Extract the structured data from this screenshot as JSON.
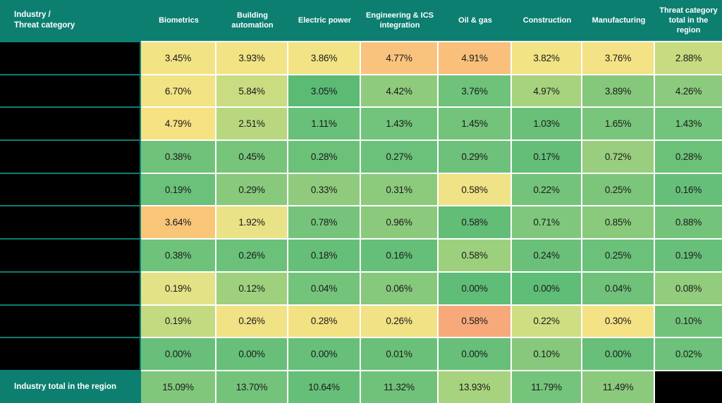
{
  "header": {
    "corner_label": "Industry /\nThreat category"
  },
  "footer": {
    "label": "Industry total in the region"
  },
  "colors": {
    "header_bg": "#0D7F71",
    "header_text": "#FFFFFF",
    "data_grid_line": "#FFFFFF",
    "label_grid_line": "#0E7E71",
    "cell_text": "#1A1A1A",
    "redacted": "#000000"
  },
  "chart_data": {
    "type": "heatmap",
    "title": "",
    "value_format": "percent, 2 decimals",
    "color_scale": "green (low) -> yellow -> orange/red (high)",
    "corner_label": "Industry / Threat category",
    "columns": [
      "Biometrics",
      "Building automation",
      "Electric power",
      "Engineering & ICS integration",
      "Oil & gas",
      "Construction",
      "Manufacturing",
      "Threat category total in the region"
    ],
    "rows": [
      {
        "label": "",
        "redacted": true,
        "values": [
          3.45,
          3.93,
          3.86,
          4.77,
          4.91,
          3.82,
          3.76,
          2.88
        ]
      },
      {
        "label": "",
        "redacted": true,
        "values": [
          6.7,
          5.84,
          3.05,
          4.42,
          3.76,
          4.97,
          3.89,
          4.26
        ]
      },
      {
        "label": "",
        "redacted": true,
        "values": [
          4.79,
          2.51,
          1.11,
          1.43,
          1.45,
          1.03,
          1.65,
          1.43
        ]
      },
      {
        "label": "",
        "redacted": true,
        "values": [
          0.38,
          0.45,
          0.28,
          0.27,
          0.29,
          0.17,
          0.72,
          0.28
        ]
      },
      {
        "label": "",
        "redacted": true,
        "values": [
          0.19,
          0.29,
          0.33,
          0.31,
          0.58,
          0.22,
          0.25,
          0.16
        ]
      },
      {
        "label": "",
        "redacted": true,
        "values": [
          3.64,
          1.92,
          0.78,
          0.96,
          0.58,
          0.71,
          0.85,
          0.88
        ]
      },
      {
        "label": "",
        "redacted": true,
        "values": [
          0.38,
          0.26,
          0.18,
          0.16,
          0.58,
          0.24,
          0.25,
          0.19
        ]
      },
      {
        "label": "",
        "redacted": true,
        "values": [
          0.19,
          0.12,
          0.04,
          0.06,
          0.0,
          0.0,
          0.04,
          0.08
        ]
      },
      {
        "label": "",
        "redacted": true,
        "values": [
          0.19,
          0.26,
          0.28,
          0.26,
          0.58,
          0.22,
          0.3,
          0.1
        ]
      },
      {
        "label": "",
        "redacted": true,
        "values": [
          0.0,
          0.0,
          0.0,
          0.01,
          0.0,
          0.1,
          0.0,
          0.02
        ]
      }
    ],
    "cell_colors": [
      [
        "#F2E385",
        "#F2E385",
        "#F2E385",
        "#FAC37D",
        "#F9C07B",
        "#F2E385",
        "#F4E286",
        "#C7DB81"
      ],
      [
        "#F2E385",
        "#CADC81",
        "#5BBB75",
        "#8FCB7D",
        "#6EC27A",
        "#A7D27E",
        "#85C87C",
        "#8CCA7D"
      ],
      [
        "#F6E183",
        "#B8D77F",
        "#68C079",
        "#72C37B",
        "#73C37B",
        "#6AC079",
        "#79C57B",
        "#72C37B"
      ],
      [
        "#70C27A",
        "#77C47B",
        "#6CC179",
        "#6BC179",
        "#6DC17A",
        "#64BE78",
        "#98CE7D",
        "#6CC179"
      ],
      [
        "#6CC17A",
        "#89C97C",
        "#90CB7D",
        "#8CCA7C",
        "#F0E286",
        "#74C37B",
        "#7CC67B",
        "#66BF79"
      ],
      [
        "#F9C577",
        "#EAE287",
        "#76C47B",
        "#8BCA7C",
        "#62BD77",
        "#7FC77C",
        "#8ACA7C",
        "#74C37B"
      ],
      [
        "#6FC27A",
        "#6BC179",
        "#66BF78",
        "#65BF78",
        "#9DD07D",
        "#6AC079",
        "#6BC179",
        "#67BF79"
      ],
      [
        "#E3E287",
        "#9ED07E",
        "#74C37B",
        "#86C87C",
        "#5FBD77",
        "#5FBD77",
        "#70C27A",
        "#92CC7D"
      ],
      [
        "#C4DA80",
        "#F0E285",
        "#F3E284",
        "#F0E285",
        "#F8A97A",
        "#CFDE82",
        "#F5E285",
        "#72C37A"
      ],
      [
        "#67BF79",
        "#67BF79",
        "#67BF79",
        "#6AC079",
        "#67BF79",
        "#87C87C",
        "#67BF79",
        "#6DC17A"
      ]
    ],
    "totals_row": {
      "label": "Industry total in the region",
      "values": [
        15.09,
        13.7,
        10.64,
        11.32,
        13.93,
        11.79,
        11.49
      ],
      "last_cell_redacted": true
    },
    "totals_colors": [
      "#80C77C",
      "#74C37B",
      "#66BF78",
      "#70C27A",
      "#A8D37E",
      "#75C47B",
      "#8BCA7D"
    ]
  }
}
